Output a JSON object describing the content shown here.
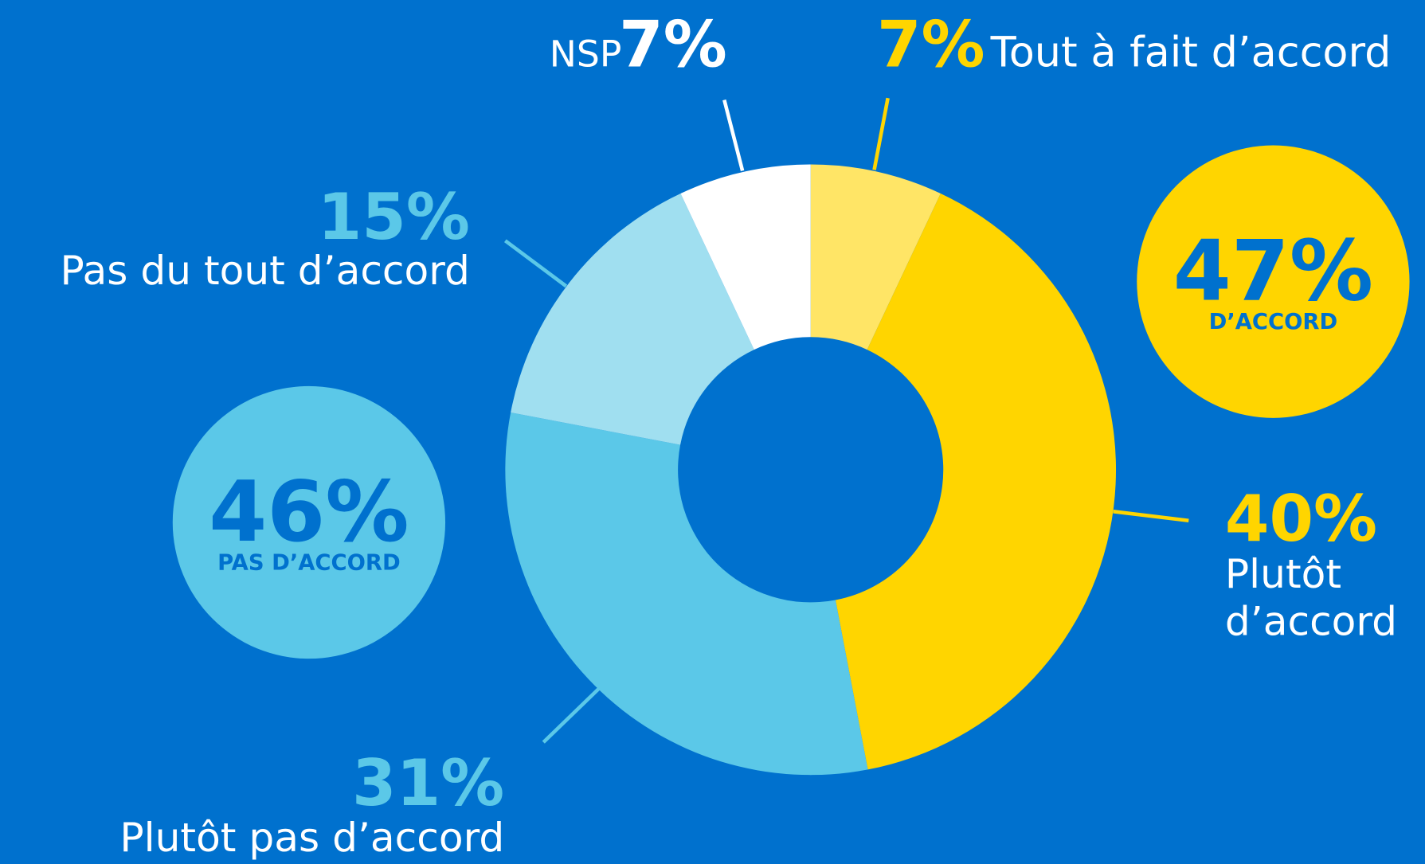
{
  "chart_data": {
    "type": "donut",
    "categories": [
      "Tout à fait d’accord",
      "Plutôt d’accord",
      "Plutôt pas d’accord",
      "Pas du tout d’accord",
      "NSP"
    ],
    "values": [
      7,
      40,
      31,
      15,
      7
    ],
    "value_labels": [
      "7%",
      "40%",
      "31%",
      "15%",
      "7%"
    ],
    "colors": [
      "#FFE566",
      "#FFD500",
      "#5BC8E8",
      "#A0DFF0",
      "#FFFFFF"
    ],
    "summaries": [
      {
        "value": 47,
        "value_label": "47%",
        "label": "D’ACCORD",
        "color": "#FFD500"
      },
      {
        "value": 46,
        "value_label": "46%",
        "label": "PAS D’ACCORD",
        "color": "#5BC8E8"
      }
    ]
  }
}
